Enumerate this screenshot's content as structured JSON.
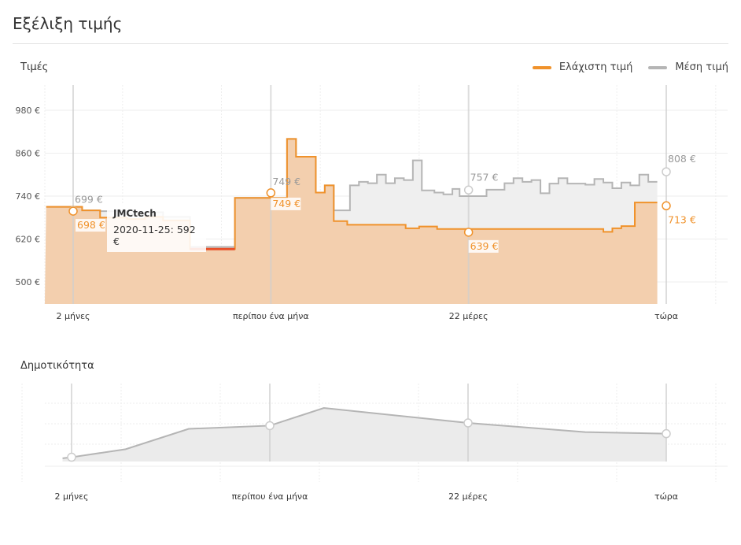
{
  "page": {
    "title": "Εξέλιξη τιμής"
  },
  "chart_data": [
    {
      "type": "line",
      "title": "Τιμές",
      "legend_position": "top-right",
      "ylim": [
        455,
        1050
      ],
      "xlim": [
        -12.5,
        73
      ],
      "grid": true,
      "y_ticks": [
        {
          "value": 980,
          "label": "980 €"
        },
        {
          "value": 860,
          "label": "860 €"
        },
        {
          "value": 740,
          "label": "740 €"
        },
        {
          "value": 620,
          "label": "620 €"
        },
        {
          "value": 500,
          "label": "500 €"
        }
      ],
      "x_ticks": [
        {
          "value": 0,
          "label": "2 μήνες"
        },
        {
          "value": 22,
          "label": "περίπου ένα μήνα"
        },
        {
          "value": 44,
          "label": "22 μέρες"
        },
        {
          "value": 66,
          "label": "τώρα"
        }
      ],
      "series": [
        {
          "name": "Ελάχιστη τιμή",
          "color": "#f0922b",
          "points": [
            [
              -3,
              710
            ],
            [
              1,
              700
            ],
            [
              3,
              680
            ],
            [
              6,
              676
            ],
            [
              8,
              682
            ],
            [
              10,
              672
            ],
            [
              13,
              592
            ],
            [
              18,
              735
            ],
            [
              22,
              735
            ],
            [
              23.8,
              900
            ],
            [
              24.8,
              850
            ],
            [
              27,
              750
            ],
            [
              28,
              770
            ],
            [
              29,
              670
            ],
            [
              30.5,
              660
            ],
            [
              37,
              650
            ],
            [
              38.5,
              655
            ],
            [
              40.5,
              648
            ],
            [
              58,
              648
            ],
            [
              59,
              640
            ],
            [
              60,
              650
            ],
            [
              61,
              656
            ],
            [
              62.5,
              722
            ],
            [
              65,
              722
            ]
          ],
          "end_x": 65,
          "markers": [
            {
              "x": 0,
              "y": 698,
              "label": "698 €"
            },
            {
              "x": 22,
              "y": 749,
              "label": "749 €"
            },
            {
              "x": 44,
              "y": 639,
              "label": "639 €"
            },
            {
              "x": 66,
              "y": 713,
              "label": "713 €"
            }
          ],
          "highlight": {
            "from": 13,
            "to": 18,
            "color": "#e8502a"
          }
        },
        {
          "name": "Μέση τιμή",
          "color": "#b5b5b5",
          "points": [
            [
              -3,
              710
            ],
            [
              1,
              700
            ],
            [
              3,
              698
            ],
            [
              6,
              690
            ],
            [
              8,
              695
            ],
            [
              10,
              682
            ],
            [
              13,
              598
            ],
            [
              18,
              735
            ],
            [
              22,
              735
            ],
            [
              23.8,
              900
            ],
            [
              24.8,
              850
            ],
            [
              27,
              750
            ],
            [
              28,
              770
            ],
            [
              29,
              700
            ],
            [
              30,
              700
            ],
            [
              30.8,
              770
            ],
            [
              31.8,
              780
            ],
            [
              32.8,
              776
            ],
            [
              33.8,
              800
            ],
            [
              34.8,
              776
            ],
            [
              35.8,
              790
            ],
            [
              36.8,
              785
            ],
            [
              37.8,
              840
            ],
            [
              38.8,
              756
            ],
            [
              40.2,
              750
            ],
            [
              41.2,
              745
            ],
            [
              42.2,
              760
            ],
            [
              43,
              740
            ],
            [
              46,
              758
            ],
            [
              48,
              776
            ],
            [
              49,
              790
            ],
            [
              50,
              780
            ],
            [
              51,
              785
            ],
            [
              52,
              748
            ],
            [
              53,
              775
            ],
            [
              54,
              790
            ],
            [
              55,
              775
            ],
            [
              57,
              772
            ],
            [
              58,
              788
            ],
            [
              59,
              778
            ],
            [
              60,
              762
            ],
            [
              61,
              778
            ],
            [
              62,
              770
            ],
            [
              63,
              800
            ],
            [
              64,
              780
            ],
            [
              65,
              780
            ]
          ],
          "end_x": 65,
          "markers": [
            {
              "x": 0,
              "y": 699,
              "label": "699 €"
            },
            {
              "x": 22,
              "y": 749,
              "label": "749 €"
            },
            {
              "x": 44,
              "y": 757,
              "label": "757 €"
            },
            {
              "x": 66,
              "y": 808,
              "label": "808 €"
            }
          ]
        }
      ],
      "tooltip": {
        "title": "JMCtech",
        "text": "2020-11-25: 592 €"
      }
    },
    {
      "type": "area",
      "title": "Δημοτικότητα",
      "ylim": [
        0,
        1
      ],
      "xlim": [
        -12.5,
        73
      ],
      "grid": true,
      "x_ticks": [
        {
          "value": 0,
          "label": "2 μήνες"
        },
        {
          "value": 22,
          "label": "περίπου ένα μήνα"
        },
        {
          "value": 44,
          "label": "22 μέρες"
        },
        {
          "value": 66,
          "label": "τώρα"
        }
      ],
      "series": [
        {
          "color": "#b5b5b5",
          "points": [
            [
              -1,
              0.06
            ],
            [
              0,
              0.08
            ],
            [
              6,
              0.23
            ],
            [
              13,
              0.61
            ],
            [
              22,
              0.67
            ],
            [
              28,
              1.0
            ],
            [
              44,
              0.72
            ],
            [
              57,
              0.55
            ],
            [
              66,
              0.52
            ]
          ],
          "markers": [
            {
              "x": 0,
              "y": 0.08
            },
            {
              "x": 22,
              "y": 0.67
            },
            {
              "x": 44,
              "y": 0.72
            },
            {
              "x": 66,
              "y": 0.52
            }
          ]
        }
      ]
    }
  ]
}
